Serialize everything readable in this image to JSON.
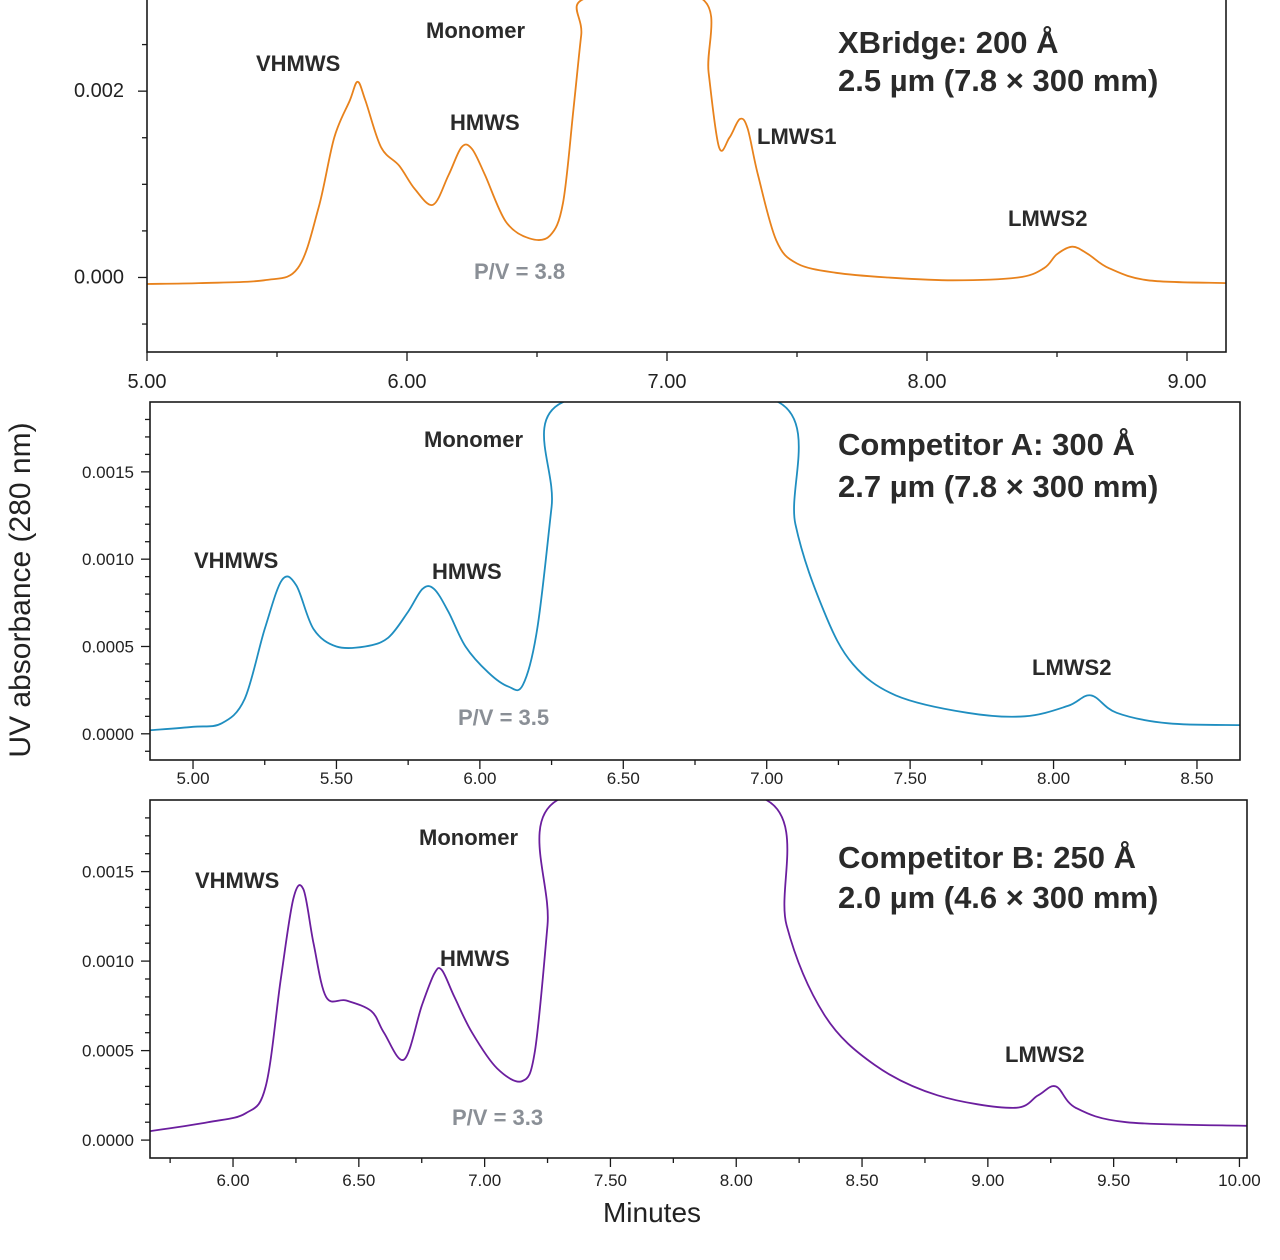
{
  "chart_data": [
    {
      "type": "line",
      "title": "XBridge: 200 Å",
      "subtitle": "2.5 µm (7.8 × 300 mm)",
      "color": "#E8821C",
      "xlim": [
        5.0,
        9.15
      ],
      "ylim": [
        -0.0008,
        0.003
      ],
      "xticks": [
        5.0,
        6.0,
        7.0,
        8.0,
        9.0
      ],
      "xticklabels": [
        "5.00",
        "6.00",
        "7.00",
        "8.00",
        "9.00"
      ],
      "yticks": [
        0.0,
        0.002
      ],
      "yticklabels": [
        "0.000",
        "0.002"
      ],
      "series": [
        {
          "name": "XBridge: 200 Å",
          "x": [
            5.0,
            5.2,
            5.45,
            5.58,
            5.66,
            5.72,
            5.78,
            5.81,
            5.84,
            5.9,
            5.97,
            6.03,
            6.1,
            6.16,
            6.21,
            6.25,
            6.3,
            6.38,
            6.47,
            6.55,
            6.6,
            6.64,
            6.67,
            6.69,
            7.13,
            7.16,
            7.2,
            7.24,
            7.28,
            7.31,
            7.35,
            7.42,
            7.5,
            7.65,
            7.85,
            8.1,
            8.35,
            8.45,
            8.5,
            8.56,
            8.62,
            8.7,
            8.85,
            9.15
          ],
          "y": [
            -7e-05,
            -6e-05,
            -3e-05,
            0.0001,
            0.00075,
            0.0015,
            0.0019,
            0.0021,
            0.0019,
            0.0014,
            0.0012,
            0.00095,
            0.00078,
            0.0011,
            0.0014,
            0.00138,
            0.0011,
            0.0006,
            0.00042,
            0.00045,
            0.0008,
            0.0018,
            0.0026,
            0.003,
            0.003,
            0.0022,
            0.0014,
            0.0015,
            0.0017,
            0.0016,
            0.0011,
            0.0004,
            0.00015,
            5e-05,
            0.0,
            -3e-05,
            0.0,
            0.0001,
            0.00025,
            0.00033,
            0.00025,
            0.0001,
            -3e-05,
            -6e-05
          ]
        }
      ],
      "annotations": [
        "Monomer",
        "VHMWS",
        "HMWS",
        "LMWS1",
        "LMWS2",
        "P/V = 3.8"
      ]
    },
    {
      "type": "line",
      "title": "Competitor A: 300 Å",
      "subtitle": "2.7 µm (7.8 × 300 mm)",
      "color": "#1F8EC0",
      "xlim": [
        4.85,
        8.65
      ],
      "ylim": [
        -0.00015,
        0.0019
      ],
      "xticks": [
        5.0,
        5.5,
        6.0,
        6.5,
        7.0,
        7.5,
        8.0,
        8.5
      ],
      "xticklabels": [
        "5.00",
        "5.50",
        "6.00",
        "6.50",
        "7.00",
        "7.50",
        "8.00",
        "8.50"
      ],
      "yticks": [
        0.0,
        0.0005,
        0.001,
        0.0015
      ],
      "yticklabels": [
        "0.0000",
        "0.0005",
        "0.0010",
        "0.0015"
      ],
      "series": [
        {
          "name": "Competitor A: 300 Å",
          "x": [
            4.85,
            5.0,
            5.1,
            5.18,
            5.25,
            5.31,
            5.36,
            5.42,
            5.5,
            5.6,
            5.68,
            5.75,
            5.8,
            5.84,
            5.89,
            5.95,
            6.03,
            6.1,
            6.15,
            6.2,
            6.25,
            6.29,
            7.04,
            7.1,
            7.2,
            7.3,
            7.45,
            7.7,
            7.9,
            8.05,
            8.13,
            8.22,
            8.4,
            8.65
          ],
          "y": [
            2e-05,
            4e-05,
            6e-05,
            0.0002,
            0.0006,
            0.00088,
            0.00085,
            0.0006,
            0.0005,
            0.0005,
            0.00055,
            0.0007,
            0.00083,
            0.00083,
            0.0007,
            0.0005,
            0.00035,
            0.00027,
            0.00028,
            0.0006,
            0.0013,
            0.0019,
            0.0019,
            0.0012,
            0.0007,
            0.0004,
            0.00022,
            0.00012,
            0.0001,
            0.00016,
            0.00022,
            0.00012,
            6e-05,
            5e-05
          ]
        }
      ],
      "annotations": [
        "Monomer",
        "VHMWS",
        "HMWS",
        "LMWS2",
        "P/V = 3.5"
      ]
    },
    {
      "type": "line",
      "title": "Competitor B: 250 Å",
      "subtitle": "2.0 µm (4.6 × 300 mm)",
      "color": "#6B1E9E",
      "xlim": [
        5.67,
        10.03
      ],
      "ylim": [
        -0.0001,
        0.0019
      ],
      "xticks": [
        6.0,
        6.5,
        7.0,
        7.5,
        8.0,
        8.5,
        9.0,
        9.5,
        10.0
      ],
      "xticklabels": [
        "6.00",
        "6.50",
        "7.00",
        "7.50",
        "8.00",
        "8.50",
        "9.00",
        "9.50",
        "10.00"
      ],
      "yticks": [
        0.0,
        0.0005,
        0.001,
        0.0015
      ],
      "yticklabels": [
        "0.0000",
        "0.0005",
        "0.0010",
        "0.0015"
      ],
      "series": [
        {
          "name": "Competitor B: 250 Å",
          "x": [
            5.67,
            5.9,
            6.05,
            6.13,
            6.19,
            6.24,
            6.28,
            6.32,
            6.37,
            6.45,
            6.55,
            6.6,
            6.68,
            6.75,
            6.8,
            6.83,
            6.88,
            6.95,
            7.05,
            7.15,
            7.2,
            7.25,
            7.29,
            8.12,
            8.2,
            8.35,
            8.55,
            8.8,
            9.1,
            9.2,
            9.27,
            9.35,
            9.55,
            10.03
          ],
          "y": [
            5e-05,
            0.0001,
            0.00015,
            0.0003,
            0.0009,
            0.00135,
            0.0014,
            0.0011,
            0.0008,
            0.00078,
            0.00072,
            0.0006,
            0.00045,
            0.00075,
            0.00093,
            0.00095,
            0.0008,
            0.0006,
            0.0004,
            0.00033,
            0.0005,
            0.0012,
            0.0019,
            0.0019,
            0.0012,
            0.0007,
            0.00042,
            0.00025,
            0.00018,
            0.00025,
            0.0003,
            0.00018,
            0.0001,
            8e-05
          ]
        }
      ],
      "annotations": [
        "Monomer",
        "VHMWS",
        "HMWS",
        "LMWS2",
        "P/V = 3.3"
      ]
    }
  ],
  "figure": {
    "ylabel": "UV absorbance (280 nm)",
    "xlabel": "Minutes"
  },
  "labels": {
    "monomer": "Monomer",
    "vhmws": "VHMWS",
    "hmws": "HMWS",
    "lmws1": "LMWS1",
    "lmws2": "LMWS2",
    "pv_xbridge": "P/V = 3.8",
    "pv_a": "P/V = 3.5",
    "pv_b": "P/V = 3.3"
  }
}
